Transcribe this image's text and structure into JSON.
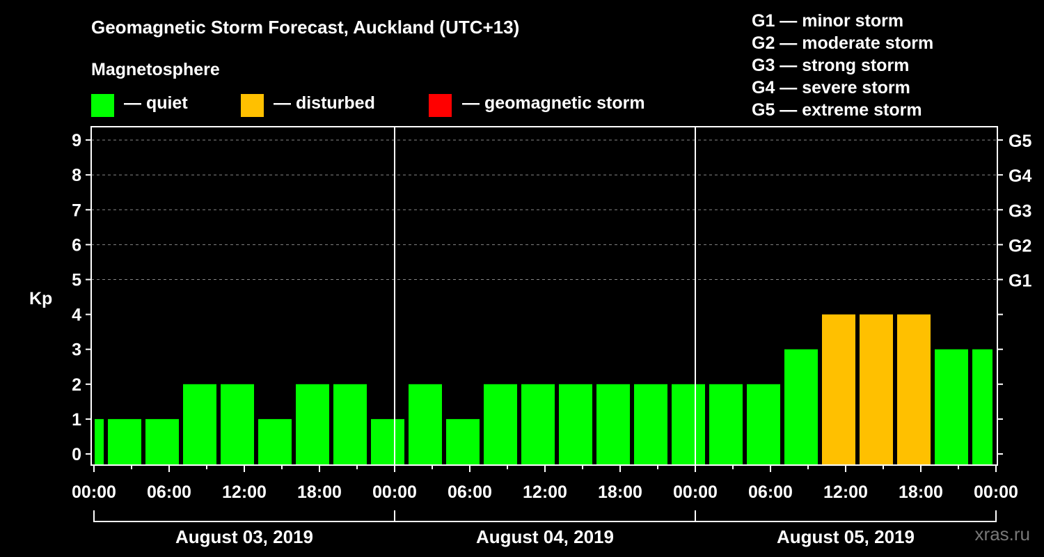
{
  "title": "Geomagnetic Storm Forecast, Auckland (UTC+13)",
  "legend": {
    "heading": "Magnetosphere",
    "items": [
      {
        "label": "— quiet",
        "color": "#00ff00"
      },
      {
        "label": "— disturbed",
        "color": "#ffc000"
      },
      {
        "label": "— geomagnetic storm",
        "color": "#ff0000"
      }
    ]
  },
  "g_scale": [
    "G1 — minor storm",
    "G2 — moderate storm",
    "G3 — strong storm",
    "G4 — severe storm",
    "G5 — extreme storm"
  ],
  "watermark": "xras.ru",
  "chart_data": {
    "type": "bar",
    "title": "Geomagnetic Storm Forecast, Auckland (UTC+13)",
    "ylabel": "Kp",
    "ylim": [
      0,
      9
    ],
    "yticks": [
      0,
      1,
      2,
      3,
      4,
      5,
      6,
      7,
      8,
      9
    ],
    "right_axis_labels": {
      "5": "G1",
      "6": "G2",
      "7": "G3",
      "8": "G4",
      "9": "G5"
    },
    "xtick_labels": [
      "00:00",
      "06:00",
      "12:00",
      "18:00",
      "00:00",
      "06:00",
      "12:00",
      "18:00",
      "00:00",
      "06:00",
      "12:00",
      "18:00",
      "00:00"
    ],
    "days": [
      "August 03, 2019",
      "August 04, 2019",
      "August 05, 2019"
    ],
    "grid": "dashed horizontal at Kp 5-9",
    "bars": [
      {
        "start_h": 0,
        "end_h": 1,
        "kp": 1,
        "status": "quiet"
      },
      {
        "start_h": 1,
        "end_h": 4,
        "kp": 1,
        "status": "quiet"
      },
      {
        "start_h": 4,
        "end_h": 7,
        "kp": 1,
        "status": "quiet"
      },
      {
        "start_h": 7,
        "end_h": 10,
        "kp": 2,
        "status": "quiet"
      },
      {
        "start_h": 10,
        "end_h": 13,
        "kp": 2,
        "status": "quiet"
      },
      {
        "start_h": 13,
        "end_h": 16,
        "kp": 1,
        "status": "quiet"
      },
      {
        "start_h": 16,
        "end_h": 19,
        "kp": 2,
        "status": "quiet"
      },
      {
        "start_h": 19,
        "end_h": 22,
        "kp": 2,
        "status": "quiet"
      },
      {
        "start_h": 22,
        "end_h": 25,
        "kp": 1,
        "status": "quiet"
      },
      {
        "start_h": 25,
        "end_h": 28,
        "kp": 2,
        "status": "quiet"
      },
      {
        "start_h": 28,
        "end_h": 31,
        "kp": 1,
        "status": "quiet"
      },
      {
        "start_h": 31,
        "end_h": 34,
        "kp": 2,
        "status": "quiet"
      },
      {
        "start_h": 34,
        "end_h": 37,
        "kp": 2,
        "status": "quiet"
      },
      {
        "start_h": 37,
        "end_h": 40,
        "kp": 2,
        "status": "quiet"
      },
      {
        "start_h": 40,
        "end_h": 43,
        "kp": 2,
        "status": "quiet"
      },
      {
        "start_h": 43,
        "end_h": 46,
        "kp": 2,
        "status": "quiet"
      },
      {
        "start_h": 46,
        "end_h": 49,
        "kp": 2,
        "status": "quiet"
      },
      {
        "start_h": 49,
        "end_h": 52,
        "kp": 2,
        "status": "quiet"
      },
      {
        "start_h": 52,
        "end_h": 55,
        "kp": 2,
        "status": "quiet"
      },
      {
        "start_h": 55,
        "end_h": 58,
        "kp": 3,
        "status": "quiet"
      },
      {
        "start_h": 58,
        "end_h": 61,
        "kp": 4,
        "status": "disturbed"
      },
      {
        "start_h": 61,
        "end_h": 64,
        "kp": 4,
        "status": "disturbed"
      },
      {
        "start_h": 64,
        "end_h": 67,
        "kp": 4,
        "status": "disturbed"
      },
      {
        "start_h": 67,
        "end_h": 70,
        "kp": 3,
        "status": "quiet"
      },
      {
        "start_h": 70,
        "end_h": 72,
        "kp": 3,
        "status": "quiet"
      }
    ],
    "colors": {
      "quiet": "#00ff00",
      "disturbed": "#ffc000",
      "storm": "#ff0000"
    }
  }
}
